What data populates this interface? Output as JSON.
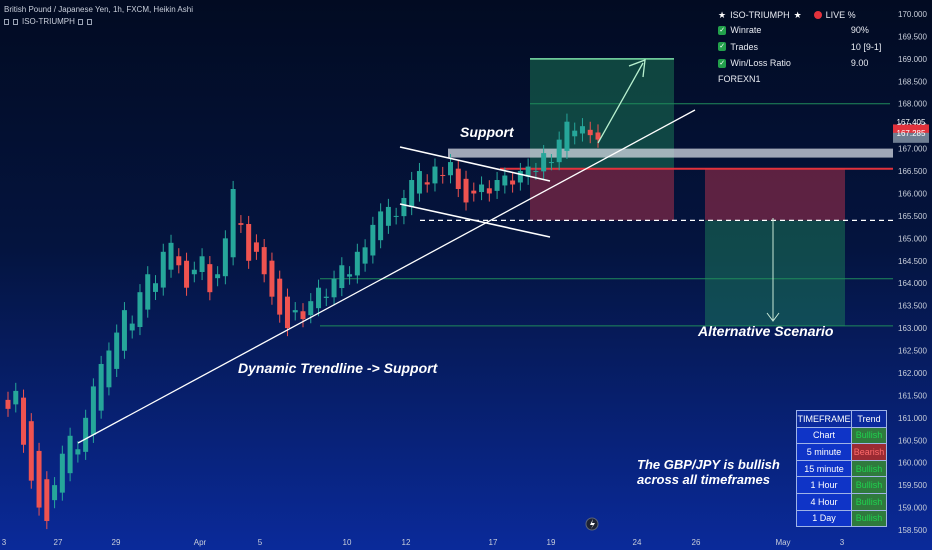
{
  "header": {
    "symbol_line": "British Pound / Japanese Yen, 1h, FXCM, Heikin Ashi",
    "indicator_line": "ISO-TRIUMPH"
  },
  "stats": {
    "title": "ISO-TRIUMPH",
    "live": "LIVE %",
    "star": "★",
    "rows": [
      {
        "label": "Winrate",
        "value": "90%"
      },
      {
        "label": "Trades",
        "value": "10 [9-1]"
      },
      {
        "label": "Win/Loss Ratio",
        "value": "9.00"
      }
    ],
    "tag": "FOREXN1"
  },
  "timeframe_table": {
    "headers": [
      "TIMEFRAME",
      "Trend"
    ],
    "rows": [
      {
        "tf": "Chart",
        "trend": "Bullish"
      },
      {
        "tf": "5 minute",
        "trend": "Bearish"
      },
      {
        "tf": "15 minute",
        "trend": "Bullish"
      },
      {
        "tf": "1 Hour",
        "trend": "Bullish"
      },
      {
        "tf": "4 Hour",
        "trend": "Bullish"
      },
      {
        "tf": "1 Day",
        "trend": "Bullish"
      }
    ]
  },
  "annotations": {
    "support": "Support",
    "dynamic": "Dynamic Trendline  -> Support",
    "alternative": "Alternative Scenario",
    "summary_line1": "The GBP/JPY is bullish",
    "summary_line2": "across all timeframes"
  },
  "price_tags": [
    {
      "label": "167.405",
      "value": 167.405,
      "color": "#e2323c"
    },
    {
      "label": "167.285",
      "value": 167.285,
      "color": "#6f7e92"
    }
  ],
  "colors": {
    "bull": "#26a69a",
    "bear": "#ef5350",
    "target_zone": "#1f8a5a",
    "stop_zone": "#a8304a"
  },
  "chart_data": {
    "type": "candlestick",
    "price_axis": {
      "min": 158.5,
      "max": 170.0,
      "ticks": [
        "158.500",
        "159.000",
        "159.500",
        "160.000",
        "160.500",
        "161.000",
        "161.500",
        "162.000",
        "162.500",
        "163.000",
        "163.500",
        "164.000",
        "164.500",
        "165.000",
        "165.500",
        "166.000",
        "166.500",
        "167.000",
        "167.500",
        "168.000",
        "168.500",
        "169.000",
        "169.500",
        "170.000"
      ]
    },
    "time_axis": {
      "labels": [
        "3",
        "27",
        "29",
        "Apr",
        "5",
        "10",
        "12",
        "17",
        "19",
        "24",
        "26",
        "May",
        "3"
      ]
    },
    "levels": [
      {
        "name": "upper-target",
        "value": 168.0
      },
      {
        "name": "resistance",
        "value": 166.55
      },
      {
        "name": "support-dashed",
        "value": 165.4
      },
      {
        "name": "lower-target-1",
        "value": 164.1
      },
      {
        "name": "lower-target-2",
        "value": 163.05
      }
    ],
    "series": [
      {
        "values": [
          161.2,
          161.6,
          160.4,
          159.6,
          159.0,
          158.7,
          159.5,
          160.2,
          160.6,
          160.3,
          161.0,
          161.7,
          162.2,
          162.5,
          162.9,
          163.4,
          163.1,
          163.8,
          164.2,
          164.0,
          164.7,
          164.9,
          164.4,
          163.9,
          164.3,
          164.6,
          163.8,
          164.2,
          165.0,
          166.1,
          165.3,
          164.5,
          164.7,
          164.2,
          163.7,
          163.3,
          163.0,
          163.4,
          163.2,
          163.6,
          163.9,
          163.7,
          164.1,
          164.4,
          164.2,
          164.7,
          164.8,
          165.3,
          165.6,
          165.7,
          165.5,
          165.9,
          166.3,
          166.5,
          166.2,
          166.6,
          166.4,
          166.7,
          166.1,
          165.8,
          166.0,
          166.2,
          166.0,
          166.3,
          166.4,
          166.2,
          166.5,
          166.6,
          166.5,
          166.9,
          166.7,
          167.2,
          167.6,
          167.4,
          167.5,
          167.3,
          167.2
        ]
      }
    ]
  }
}
